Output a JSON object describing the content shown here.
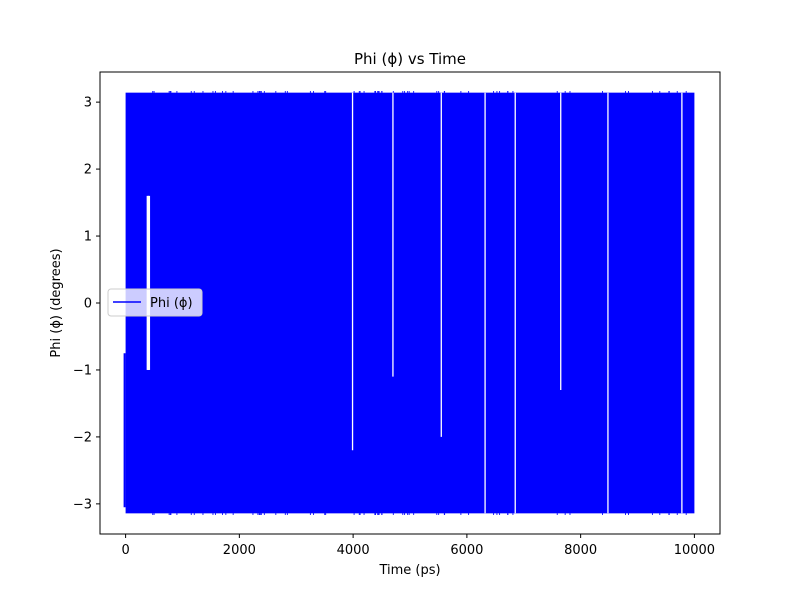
{
  "chart_data": {
    "type": "line",
    "title": "Phi (ϕ) vs Time",
    "xlabel": "Time (ps)",
    "ylabel": "Phi (ϕ) (degrees)",
    "xlim": [
      -450,
      10450
    ],
    "ylim": [
      -3.45,
      3.45
    ],
    "xticks": [
      0,
      2000,
      4000,
      6000,
      8000,
      10000
    ],
    "yticks": [
      -3,
      -2,
      -1,
      0,
      1,
      2,
      3
    ],
    "grid": false,
    "legend_position": "center-left",
    "series": [
      {
        "name": "Phi (ϕ)",
        "color": "#0000ff",
        "x_range": [
          0,
          10000
        ],
        "value_range": [
          -3.14159,
          3.14159
        ],
        "description_values": "dense oscillation wrapping between -π and π across the full time range",
        "gaps": [
          {
            "x": 400,
            "y_range": [
              -1.0,
              1.6
            ]
          },
          {
            "x": 3990,
            "y_range": [
              -2.2,
              3.14
            ]
          },
          {
            "x": 4700,
            "y_range": [
              -1.1,
              3.14
            ]
          },
          {
            "x": 5550,
            "y_range": [
              -2.0,
              3.14
            ]
          },
          {
            "x": 6320,
            "y_range": [
              -3.14,
              3.14
            ]
          },
          {
            "x": 6850,
            "y_range": [
              -3.14,
              3.14
            ]
          },
          {
            "x": 7650,
            "y_range": [
              -1.3,
              3.14
            ]
          },
          {
            "x": 8480,
            "y_range": [
              -3.14,
              3.14
            ]
          },
          {
            "x": 9780,
            "y_range": [
              -3.14,
              3.14
            ]
          }
        ]
      }
    ]
  }
}
